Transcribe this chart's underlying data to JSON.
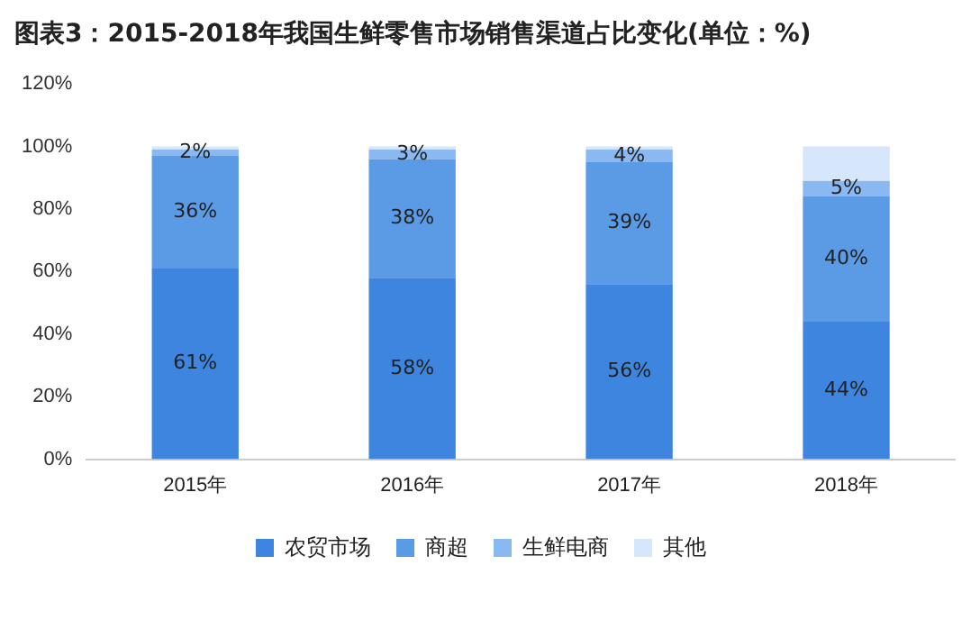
{
  "chart_data": {
    "type": "bar",
    "title": "图表3：2015-2018年我国生鲜零售市场销售渠道占比变化(单位：%)",
    "categories": [
      "2015年",
      "2016年",
      "2017年",
      "2018年"
    ],
    "stacked": true,
    "ylim": [
      0,
      120
    ],
    "yticks": [
      {
        "value": 0,
        "label": "0%"
      },
      {
        "value": 20,
        "label": "20%"
      },
      {
        "value": 40,
        "label": "40%"
      },
      {
        "value": 60,
        "label": "60%"
      },
      {
        "value": 80,
        "label": "80%"
      },
      {
        "value": 100,
        "label": "100%"
      },
      {
        "value": 120,
        "label": "120%"
      }
    ],
    "grid": false,
    "legend": "bottom",
    "series": [
      {
        "name": "农贸市场",
        "color": "#3d85de",
        "values": [
          61,
          58,
          56,
          44
        ],
        "value_labels": [
          "61%",
          "58%",
          "56%",
          "44%"
        ]
      },
      {
        "name": "商超",
        "color": "#5b9be6",
        "values": [
          36,
          38,
          39,
          40
        ],
        "value_labels": [
          "36%",
          "38%",
          "39%",
          "40%"
        ]
      },
      {
        "name": "生鲜电商",
        "color": "#8ab8f0",
        "values": [
          2,
          3,
          4,
          5
        ],
        "value_labels": [
          "2%",
          "3%",
          "4%",
          "5%"
        ]
      },
      {
        "name": "其他",
        "color": "#d6e6fb",
        "values": [
          1,
          1,
          1,
          11
        ]
      }
    ]
  }
}
